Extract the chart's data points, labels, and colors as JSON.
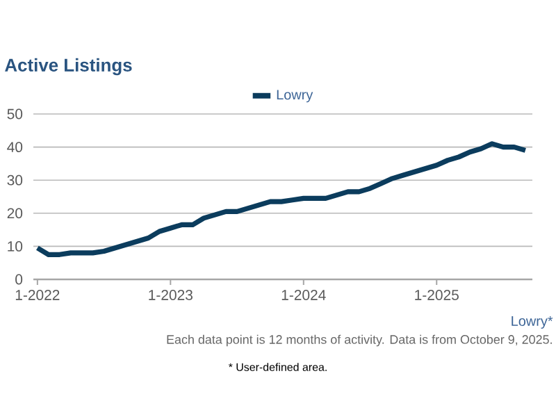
{
  "chart_data": {
    "type": "line",
    "title": "Active Listings",
    "x": [
      "2022-01",
      "2022-02",
      "2022-03",
      "2022-04",
      "2022-05",
      "2022-06",
      "2022-07",
      "2022-08",
      "2022-09",
      "2022-10",
      "2022-11",
      "2022-12",
      "2023-01",
      "2023-02",
      "2023-03",
      "2023-04",
      "2023-05",
      "2023-06",
      "2023-07",
      "2023-08",
      "2023-09",
      "2023-10",
      "2023-11",
      "2023-12",
      "2024-01",
      "2024-02",
      "2024-03",
      "2024-04",
      "2024-05",
      "2024-06",
      "2024-07",
      "2024-08",
      "2024-09",
      "2024-10",
      "2024-11",
      "2024-12",
      "2025-01",
      "2025-02",
      "2025-03",
      "2025-04",
      "2025-05",
      "2025-06",
      "2025-07",
      "2025-08",
      "2025-09"
    ],
    "series": [
      {
        "name": "Lowry",
        "color": "#0b3c5d",
        "values": [
          9.5,
          7.5,
          7.5,
          8,
          8,
          8,
          8.5,
          9.5,
          10.5,
          11.5,
          12.5,
          14.5,
          15.5,
          16.5,
          16.5,
          18.5,
          19.5,
          20.5,
          20.5,
          21.5,
          22.5,
          23.5,
          23.5,
          24,
          24.5,
          24.5,
          24.5,
          25.5,
          26.5,
          26.5,
          27.5,
          29,
          30.5,
          31.5,
          32.5,
          33.5,
          34.5,
          36,
          37,
          38.5,
          39.5,
          41,
          40,
          40,
          39
        ]
      }
    ],
    "xlim": [
      "2021-12-20",
      "2025-09-20"
    ],
    "xticks": [
      {
        "value": "2022-01",
        "label": "1-2022"
      },
      {
        "value": "2023-01",
        "label": "1-2023"
      },
      {
        "value": "2024-01",
        "label": "1-2024"
      },
      {
        "value": "2025-01",
        "label": "1-2025"
      }
    ],
    "ylim": [
      0,
      50
    ],
    "yticks": [
      0,
      10,
      20,
      30,
      40,
      50
    ],
    "grid": "y",
    "legend": "top",
    "line_style": "solid",
    "annotations": [
      "Lowry*",
      "Each data point is 12 months of activity. Data is from October 9, 2025.",
      "* User-defined area."
    ]
  }
}
